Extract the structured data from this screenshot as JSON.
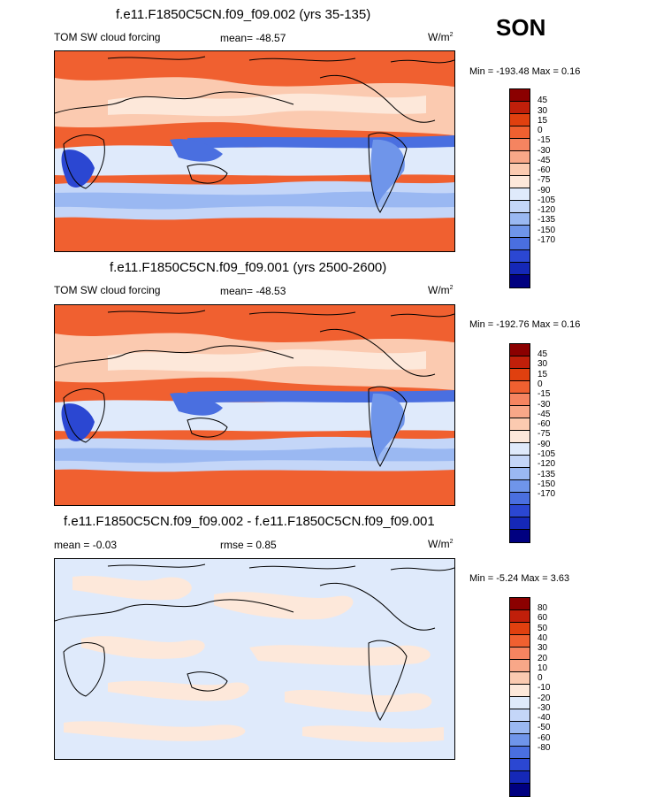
{
  "season": "SON",
  "panels": [
    {
      "title": "f.e11.F1850C5CN.f09_f09.002 (yrs 35-135)",
      "left_label": "TOM SW cloud forcing",
      "center_label": "mean= -48.57",
      "units": "W/m",
      "units_sup": "2",
      "minmax": "Min = -193.48 Max =   0.16",
      "colorbar_labels": [
        "45",
        "30",
        "15",
        "0",
        "-15",
        "-30",
        "-45",
        "-60",
        "-75",
        "-90",
        "-105",
        "-120",
        "-135",
        "-150",
        "-170"
      ]
    },
    {
      "title": "f.e11.F1850C5CN.f09_f09.001 (yrs 2500-2600)",
      "left_label": "TOM SW cloud forcing",
      "center_label": "mean= -48.53",
      "units": "W/m",
      "units_sup": "2",
      "minmax": "Min = -192.76 Max =   0.16",
      "colorbar_labels": [
        "45",
        "30",
        "15",
        "0",
        "-15",
        "-30",
        "-45",
        "-60",
        "-75",
        "-90",
        "-105",
        "-120",
        "-135",
        "-150",
        "-170"
      ]
    },
    {
      "title": "f.e11.F1850C5CN.f09_f09.002 - f.e11.F1850C5CN.f09_f09.001",
      "left_label": "mean =  -0.03",
      "center_label": "rmse =   0.85",
      "units": "W/m",
      "units_sup": "2",
      "minmax": "Min =  -5.24 Max =   3.63",
      "colorbar_labels": [
        "80",
        "60",
        "50",
        "40",
        "30",
        "20",
        "10",
        "0",
        "-10",
        "-20",
        "-30",
        "-40",
        "-50",
        "-60",
        "-80"
      ]
    }
  ],
  "colorbar_colors": [
    "#8b0000",
    "#c01f0a",
    "#e0400f",
    "#f06030",
    "#f58460",
    "#f8a788",
    "#fbcab0",
    "#fde8da",
    "#dfeafb",
    "#c4d6f8",
    "#9ab8f2",
    "#6f95ea",
    "#4a6fe0",
    "#2b47d2",
    "#1528b8",
    "#000080"
  ]
}
